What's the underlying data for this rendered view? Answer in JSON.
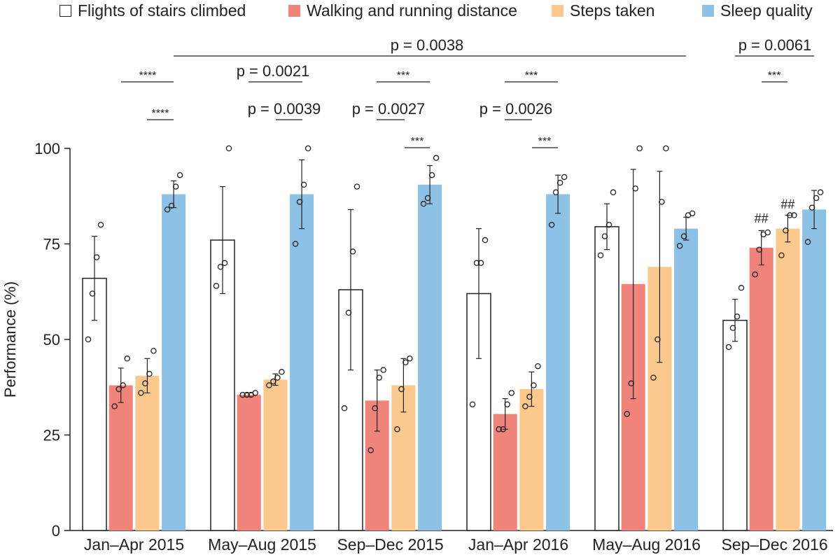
{
  "chart_data": {
    "type": "bar",
    "ylabel": "Performance (%)",
    "ylim": [
      0,
      100
    ],
    "yticks": [
      0,
      25,
      50,
      75,
      100
    ],
    "categories": [
      "Jan–Apr 2015",
      "May–Aug 2015",
      "Sep–Dec 2015",
      "Jan–Apr 2016",
      "May–Aug 2016",
      "Sep–Dec 2016"
    ],
    "legend_position": "top",
    "series": [
      {
        "name": "Flights of stairs climbed",
        "color": "#ffffff",
        "stroke": "#222222",
        "values": [
          66,
          76,
          63,
          62,
          79.5,
          55
        ],
        "errors": [
          11,
          14,
          21,
          17,
          6,
          5.5
        ],
        "points": [
          [
            50,
            62,
            71.5,
            80
          ],
          [
            64,
            69,
            70,
            100
          ],
          [
            32,
            57,
            73,
            90
          ],
          [
            33,
            70,
            70,
            76
          ],
          [
            72,
            77,
            80,
            88.5
          ],
          [
            48,
            53,
            56,
            63.5
          ]
        ]
      },
      {
        "name": "Walking and running distance",
        "color": "#f0837a",
        "stroke": "#f0837a",
        "values": [
          38,
          35.5,
          34,
          30.5,
          64.5,
          74
        ],
        "errors": [
          4.5,
          0.5,
          8,
          4,
          30,
          4.5
        ],
        "points": [
          [
            32.5,
            37,
            38,
            45
          ],
          [
            35.5,
            35.5,
            35.5,
            36
          ],
          [
            21,
            32,
            40,
            42
          ],
          [
            26.5,
            26.5,
            33,
            36
          ],
          [
            30.5,
            38.5,
            89.5,
            100
          ],
          [
            67,
            73.5,
            77.5,
            78
          ]
        ]
      },
      {
        "name": "Steps taken",
        "color": "#fbc98e",
        "stroke": "#fbc98e",
        "values": [
          40.5,
          39.5,
          38,
          37,
          69,
          79
        ],
        "errors": [
          4.5,
          1.5,
          7,
          4.5,
          25,
          3.5
        ],
        "points": [
          [
            36,
            38.5,
            41,
            47
          ],
          [
            38,
            39,
            40,
            41.5
          ],
          [
            26.5,
            37,
            44,
            45
          ],
          [
            32.5,
            35,
            38,
            43
          ],
          [
            40,
            50,
            86,
            100
          ],
          [
            72,
            78.5,
            82.5,
            82.5
          ]
        ]
      },
      {
        "name": "Sleep quality",
        "color": "#8dc1e5",
        "stroke": "#8dc1e5",
        "values": [
          88,
          88,
          90.5,
          88,
          79,
          84
        ],
        "errors": [
          3.5,
          9,
          5,
          5,
          3,
          5
        ],
        "points": [
          [
            84,
            85,
            90,
            93
          ],
          [
            75,
            86,
            90.5,
            100
          ],
          [
            85.5,
            87,
            93,
            97.5
          ],
          [
            80,
            88.5,
            91,
            92.5
          ],
          [
            74.5,
            77,
            82.5,
            83
          ],
          [
            75.5,
            84.5,
            87,
            88.5
          ]
        ]
      }
    ],
    "annotations": [
      {
        "text": "p = 0.0038",
        "kind": "p",
        "bracket": "Jan–Apr 2015 to May–Aug 2016"
      },
      {
        "text": "p = 0.0061",
        "kind": "p",
        "bracket": "Sep–Dec 2016"
      },
      {
        "text": "****",
        "kind": "stars"
      },
      {
        "text": "****",
        "kind": "stars"
      },
      {
        "text": "p = 0.0021",
        "kind": "p"
      },
      {
        "text": "p = 0.0039",
        "kind": "p"
      },
      {
        "text": "***",
        "kind": "stars"
      },
      {
        "text": "p = 0.0027",
        "kind": "p"
      },
      {
        "text": "***",
        "kind": "stars"
      },
      {
        "text": "***",
        "kind": "stars"
      },
      {
        "text": "p = 0.0026",
        "kind": "p"
      },
      {
        "text": "***",
        "kind": "stars"
      },
      {
        "text": "***",
        "kind": "stars"
      },
      {
        "text": "##",
        "kind": "hash"
      },
      {
        "text": "##",
        "kind": "hash"
      }
    ]
  }
}
